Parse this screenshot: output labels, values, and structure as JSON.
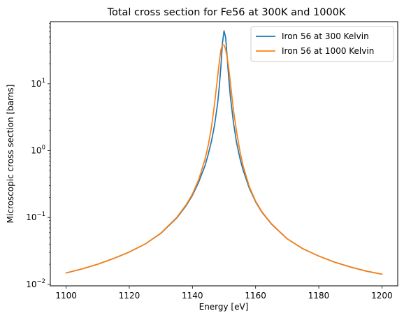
{
  "chart_data": {
    "type": "line",
    "title": "Total cross section for Fe56 at 300K and 1000K",
    "xlabel": "Energy [eV]",
    "ylabel": "Microscopic cross section [barns]",
    "xlim": [
      1095,
      1205
    ],
    "ylim": [
      0.0095,
      85
    ],
    "yscale": "log",
    "xticks": [
      1100,
      1120,
      1140,
      1160,
      1180,
      1200
    ],
    "yticks": [
      {
        "value": 0.01,
        "base": "10",
        "exp": "−2"
      },
      {
        "value": 0.1,
        "base": "10",
        "exp": "−1"
      },
      {
        "value": 1,
        "base": "10",
        "exp": "0"
      },
      {
        "value": 10,
        "base": "10",
        "exp": "1"
      }
    ],
    "grid": false,
    "legend": "top-right",
    "series": [
      {
        "name": "Iron 56 at 300 Kelvin",
        "color": "#1f77b4",
        "x": [
          1100,
          1105,
          1110,
          1115,
          1120,
          1125,
          1130,
          1135,
          1138,
          1140,
          1142,
          1144,
          1145,
          1146,
          1147,
          1148,
          1148.5,
          1149,
          1149.5,
          1150,
          1150.5,
          1151,
          1151.5,
          1152,
          1153,
          1154,
          1155,
          1156,
          1158,
          1160,
          1162,
          1165,
          1170,
          1175,
          1180,
          1185,
          1190,
          1195,
          1200
        ],
        "y": [
          0.0148,
          0.017,
          0.02,
          0.0243,
          0.0305,
          0.04,
          0.058,
          0.098,
          0.15,
          0.215,
          0.34,
          0.6,
          0.88,
          1.37,
          2.4,
          5.2,
          9.0,
          18,
          40,
          62,
          50,
          25,
          12,
          6.5,
          2.6,
          1.3,
          0.78,
          0.52,
          0.275,
          0.172,
          0.12,
          0.08,
          0.048,
          0.034,
          0.0265,
          0.0215,
          0.0182,
          0.0158,
          0.0142
        ]
      },
      {
        "name": "Iron 56 at 1000 Kelvin",
        "color": "#ff7f0e",
        "x": [
          1100,
          1105,
          1110,
          1115,
          1120,
          1125,
          1130,
          1135,
          1138,
          1140,
          1142,
          1144,
          1145,
          1146,
          1147,
          1148,
          1148.5,
          1149,
          1149.5,
          1150,
          1150.5,
          1151,
          1151.5,
          1152,
          1153,
          1154,
          1155,
          1156,
          1158,
          1160,
          1162,
          1165,
          1170,
          1175,
          1180,
          1185,
          1190,
          1195,
          1200
        ],
        "y": [
          0.0148,
          0.017,
          0.02,
          0.0243,
          0.0305,
          0.04,
          0.0585,
          0.1,
          0.155,
          0.225,
          0.37,
          0.75,
          1.2,
          2.2,
          5.0,
          13,
          21,
          32,
          38,
          38,
          33,
          25,
          17,
          10.5,
          4.0,
          1.9,
          1.0,
          0.6,
          0.29,
          0.176,
          0.122,
          0.081,
          0.048,
          0.034,
          0.0265,
          0.0215,
          0.0182,
          0.0158,
          0.0142
        ]
      }
    ]
  }
}
